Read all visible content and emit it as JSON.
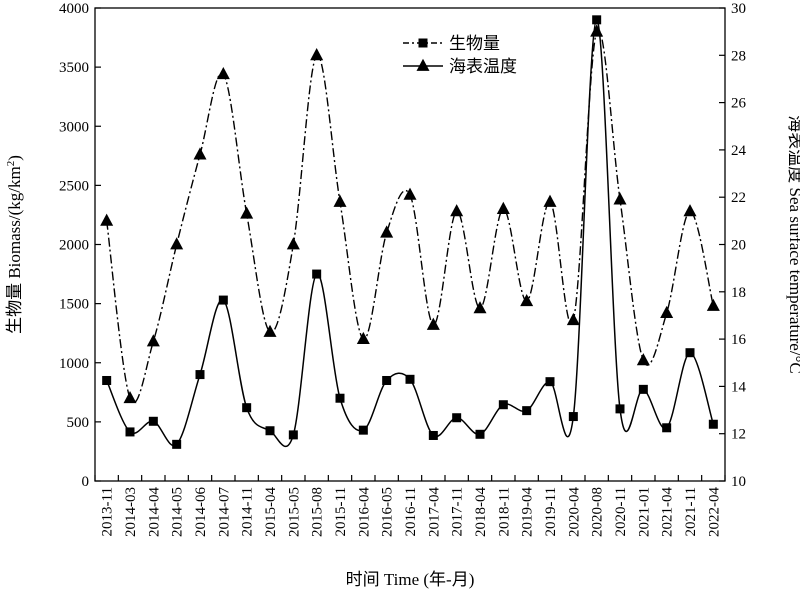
{
  "chart_data": {
    "type": "line",
    "title": "",
    "categories": [
      "2013-11",
      "2014-03",
      "2014-04",
      "2014-05",
      "2014-06",
      "2014-07",
      "2014-11",
      "2015-04",
      "2015-05",
      "2015-08",
      "2015-11",
      "2016-04",
      "2016-05",
      "2016-11",
      "2017-04",
      "2017-11",
      "2018-04",
      "2018-11",
      "2019-04",
      "2019-11",
      "2020-04",
      "2020-08",
      "2020-11",
      "2021-01",
      "2021-04",
      "2021-11",
      "2022-04"
    ],
    "xlabel": "时间 Time (年-月)",
    "ylabel_left": {
      "text": "生物量 Biomass/(kg/km",
      "sup": "2",
      "close": ")"
    },
    "ylabel_right": "海表温度 Sea surface temperature/°C",
    "ylim_left": [
      0,
      4000
    ],
    "ylim_right": [
      10,
      30
    ],
    "yticks_left": [
      0,
      500,
      1000,
      1500,
      2000,
      2500,
      3000,
      3500,
      4000
    ],
    "yticks_right": [
      10,
      12,
      14,
      16,
      18,
      20,
      22,
      24,
      26,
      28,
      30
    ],
    "grid": false,
    "legend_position": "top-center",
    "series": [
      {
        "name": "生物量",
        "axis": "left",
        "marker": "square",
        "line_style": "solid",
        "values": [
          850,
          415,
          505,
          310,
          900,
          1530,
          620,
          425,
          390,
          1750,
          700,
          430,
          850,
          860,
          385,
          535,
          395,
          645,
          595,
          840,
          545,
          3900,
          610,
          775,
          450,
          1085,
          480
        ]
      },
      {
        "name": "海表温度",
        "axis": "right",
        "marker": "triangle",
        "line_style": "dash-dot",
        "values": [
          21.0,
          13.5,
          15.9,
          20.0,
          23.8,
          27.2,
          21.3,
          16.3,
          20.0,
          28.0,
          21.8,
          16.0,
          20.5,
          22.1,
          16.6,
          21.4,
          17.3,
          21.5,
          17.6,
          21.8,
          16.8,
          29.0,
          21.9,
          15.1,
          17.1,
          21.4,
          17.4
        ]
      }
    ],
    "colors": {
      "line": "#000000",
      "background": "#ffffff"
    }
  }
}
